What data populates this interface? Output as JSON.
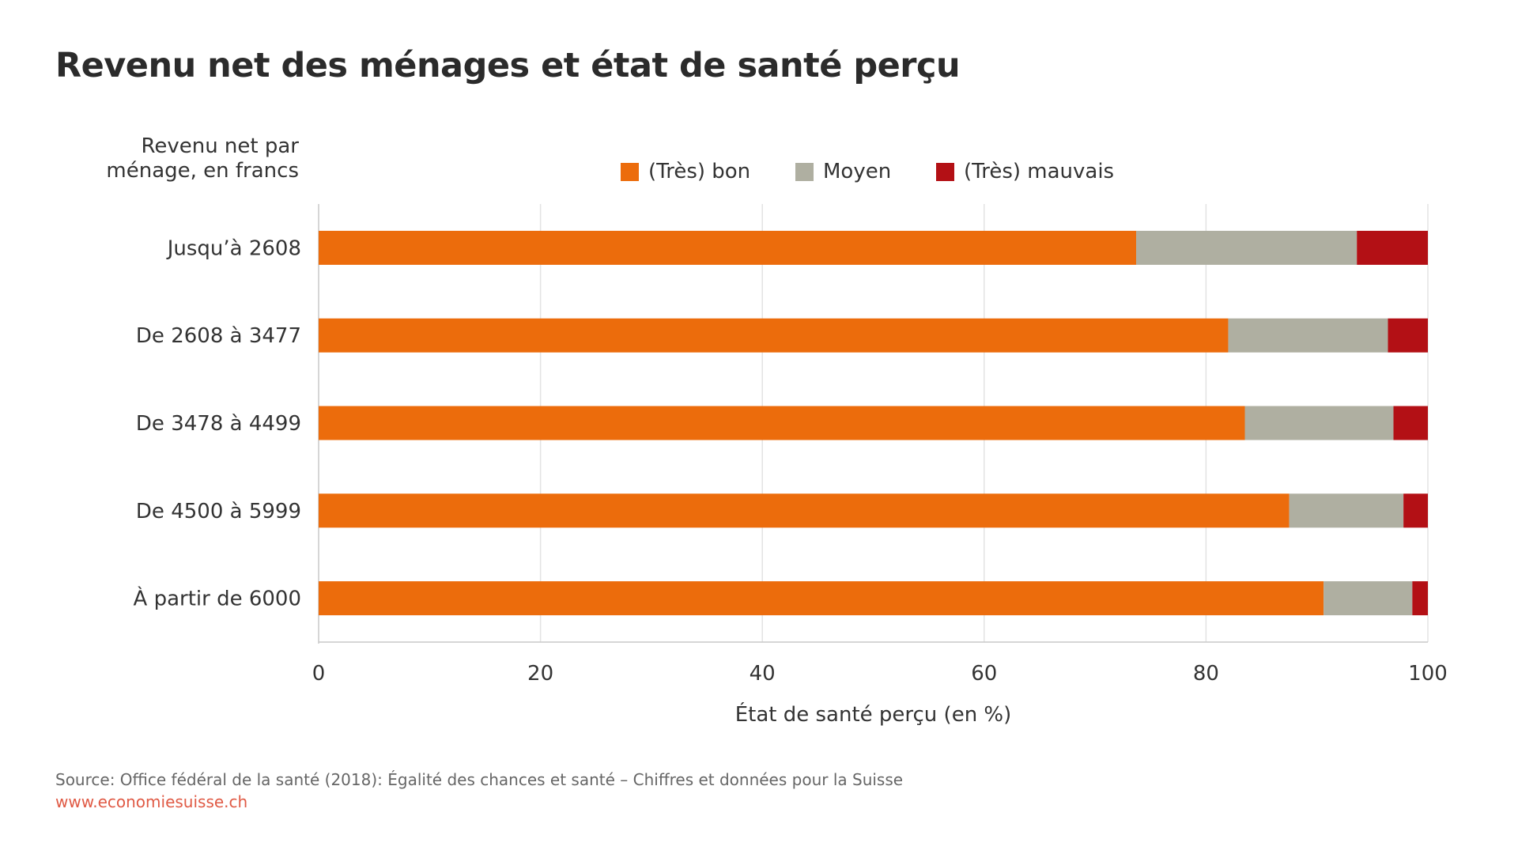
{
  "title": "Revenu net des ménages et état de santé perçu",
  "y_axis_title_lines": [
    "Revenu net par",
    "ménage, en francs"
  ],
  "source": "Source: Office fédéral de la santé (2018): Égalité des chances et santé – Chiffres et données pour la Suisse",
  "website": "www.economiesuisse.ch",
  "chart_data": {
    "type": "bar",
    "orientation": "horizontal",
    "stacked": true,
    "title": "Revenu net des ménages et état de santé perçu",
    "xlabel": "État de santé perçu (en %)",
    "ylabel": "Revenu net par ménage, en francs",
    "xlim": [
      0,
      100
    ],
    "xticks": [
      "0",
      "20",
      "40",
      "60",
      "80",
      "100"
    ],
    "categories": [
      "Jusqu’à 2608",
      "De 2608 à 3477",
      "De 3478 à 4499",
      "De 4500 à 5999",
      "À partir de 6000"
    ],
    "series": [
      {
        "name": "(Très) bon",
        "color": "#ec6c0c",
        "values": [
          73.7,
          82.0,
          83.5,
          87.5,
          90.6
        ]
      },
      {
        "name": "Moyen",
        "color": "#afafa1",
        "values": [
          19.9,
          14.4,
          13.4,
          10.3,
          8.0
        ]
      },
      {
        "name": "(Très) mauvais",
        "color": "#b31015",
        "values": [
          6.4,
          3.6,
          3.1,
          2.2,
          1.4
        ]
      }
    ],
    "grid": true,
    "legend": "top"
  }
}
